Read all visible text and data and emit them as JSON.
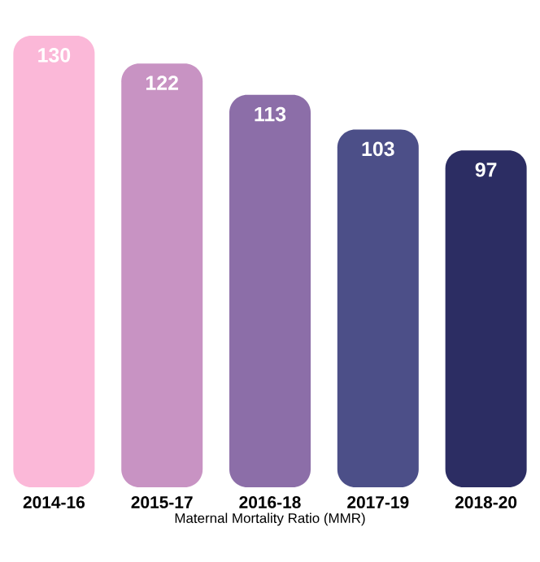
{
  "chart_data": {
    "type": "bar",
    "xlabel": "Maternal Mortality Ratio (MMR)",
    "categories": [
      "2014-16",
      "2015-17",
      "2016-18",
      "2017-19",
      "2018-20"
    ],
    "values": [
      130,
      122,
      113,
      103,
      97
    ],
    "colors": [
      "#fbb8d8",
      "#c893c3",
      "#8c6ea8",
      "#4c4f88",
      "#2c2d63"
    ],
    "data_labels": true
  }
}
